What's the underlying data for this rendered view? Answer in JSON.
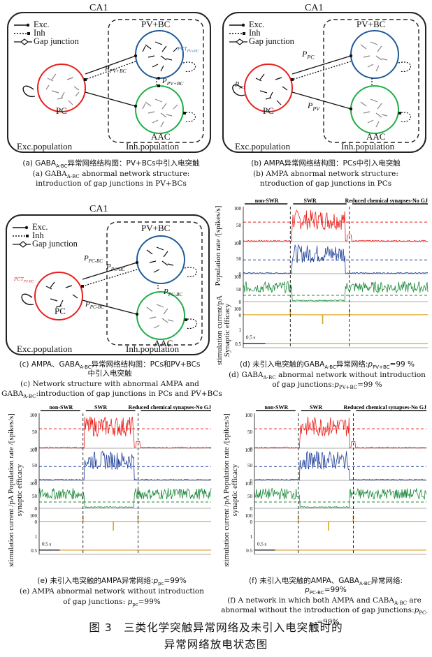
{
  "panels": {
    "a": {
      "title": "CA1",
      "legend": [
        "Exc.",
        "Inh",
        "Gap junction"
      ],
      "nodes": {
        "pv": "PV+BC",
        "pc": "PC",
        "aac": "AAC"
      },
      "probs": {
        "p_pc_pv": "P",
        "p_pc_pv_sub": "PV+BC",
        "p_pv_aac": "P",
        "p_pv_aac_sub": "PV+BC"
      },
      "pct_label": "PCT",
      "pct_sub": "PV+BC",
      "groups": {
        "exc": "Exc.population",
        "inh": "Inh.population"
      },
      "caption_zh": "(a) GABA",
      "caption_zh_sub": "A-BC",
      "caption_zh_rest": "异常网络结构图：PV+BCs中引入电突触",
      "caption_en_1": "(a) GABA",
      "caption_en_1_sub": "A-BC",
      "caption_en_1_rest": " abnormal network structure:",
      "caption_en_2": "introduction of gap junctions in PV+BCs"
    },
    "b": {
      "title": "CA1",
      "legend": [
        "Exc.",
        "Inh",
        "Gap junction"
      ],
      "nodes": {
        "pv": "PV+BC",
        "pc": "PC",
        "aac": "AAC"
      },
      "probs": {
        "p_pc": "P",
        "p_pc_sub": "PC",
        "p_pv": "P",
        "p_pv_sub": "PV"
      },
      "pct_label": "P",
      "pct_sub": "PC",
      "groups": {
        "exc": "Exc.population",
        "inh": "Inh.population"
      },
      "caption_zh": "(b) AMPA异常网络结构图：PCs中引入电突触",
      "caption_en_1": "(b) AMPA abnormal network structure:",
      "caption_en_2": "ntroduction of gap junctions in PCs"
    },
    "c": {
      "title": "CA1",
      "legend": [
        "Exc.",
        "Inh",
        "Gap junction"
      ],
      "nodes": {
        "pv": "PV+BC",
        "pc": "PC",
        "aac": "AAC"
      },
      "probs": {
        "p1": "P",
        "p1_sub": "PC-BC",
        "p2": "P",
        "p2_sub": "PC-BC",
        "p3": "P",
        "p3_sub": "PC-BC",
        "p4": "P",
        "p4_sub": "PC-BC"
      },
      "pct_label": "PCT",
      "pct_sub": "PC-BC",
      "groups": {
        "exc": "Exc.population",
        "inh": "Inh.population"
      },
      "caption_zh_1": "(c) AMPA、GABA",
      "caption_zh_1_sub": "A-BC",
      "caption_zh_1_rest": "异常网络结构图：PCs和PV+BCs",
      "caption_zh_2": "中引入电突触",
      "caption_en_1": "(c) Network structure with abnormal AMPA and",
      "caption_en_2": "GABA",
      "caption_en_2_sub": "A-BC",
      "caption_en_2_rest": ":introduction of gap junctions in PCs and PV+BCs"
    },
    "d": {
      "phases": [
        "non-SWR",
        "SWR",
        "Reduced chemical synapses-No GJ"
      ],
      "ylabel_top": "Population rate /[spikes/s]",
      "ylabel_bottom": "stimulation current/pA",
      "ylabel_eff": "Synaptic efficacy",
      "scale": "0.5 s",
      "caption_zh": "(d) 未引入电突触的GABA",
      "caption_zh_sub": "A-BC",
      "caption_zh_rest": "异常网络:",
      "caption_zh_p": "p",
      "caption_zh_p_sub": "PV+BC",
      "caption_zh_val": "=99 %",
      "caption_en_1": "(d) GABA",
      "caption_en_1_sub": "A-BC",
      "caption_en_1_rest": " abnormal network without introduction",
      "caption_en_2": "of gap junctions:",
      "caption_en_2_p": "p",
      "caption_en_2_sub": "PV+BC",
      "caption_en_2_val": "=99 %"
    },
    "e": {
      "phases": [
        "non-SWR",
        "SWR",
        "Reduced chemical synapses-No GJ"
      ],
      "ylabel_top": "Population rate /[spikes/s]",
      "ylabel_bottom": "stimulation current /pA",
      "ylabel_eff": "synaptic efficacy",
      "scale": "0.5 s",
      "caption_zh": "(e) 未引入电突触的AMPA异常网络:",
      "caption_zh_p": "p",
      "caption_zh_p_sub": "pc",
      "caption_zh_val": "=99%",
      "caption_en_1": "(e) AMPA abnormal network without introduction",
      "caption_en_2": "of gap junctions: ",
      "caption_en_2_p": "p",
      "caption_en_2_sub": "pc",
      "caption_en_2_val": "=99%"
    },
    "f": {
      "phases": [
        "non-SWR",
        "SWR",
        "Reduced chemical synapses-No GJ"
      ],
      "ylabel_top": "Population rate /[spikes/s]",
      "ylabel_bottom": "stimulation current /pA",
      "ylabel_eff": "synaptic efficacy",
      "scale": "0.5 s",
      "caption_zh": "(f) 未引入电突触的AMPA、GABA",
      "caption_zh_sub": "A-BC",
      "caption_zh_rest": "异常网络:",
      "caption_zh_2": "p",
      "caption_zh_2_sub": "PC-BC",
      "caption_zh_2_val": "=99%",
      "caption_en_1": "(f) A network in which both AMPA and CABA",
      "caption_en_1_sub": "A-BC",
      "caption_en_1_rest": " are",
      "caption_en_2": "abnormal without the introduction of gap junctions:",
      "caption_en_2_p": "p",
      "caption_en_2_sub": "PC-BC",
      "caption_en_2_val": "=99%"
    }
  },
  "figure_title_1": "图 3　三类化学突触异常网络及未引入电突触时的",
  "figure_title_2": "异常网络放电状态图",
  "chart_data": {
    "type": "line",
    "panels": [
      "d",
      "e",
      "f"
    ],
    "ticks_top": [
      0,
      50,
      100
    ],
    "ticks_bottom": [
      0,
      100
    ],
    "ticks_eff": [
      0.5,
      1.0
    ],
    "phases": [
      "non-SWR",
      "SWR",
      "Reduced chemical synapses-No GJ"
    ],
    "series": [
      {
        "name": "PC",
        "color": "#d62728"
      },
      {
        "name": "PV+BC",
        "color": "#1f3f99"
      },
      {
        "name": "AAC",
        "color": "#1a8a3a"
      }
    ],
    "colors": {
      "red": "#e8201c",
      "blue": "#1f3f99",
      "green": "#1a8a3a",
      "orange": "#d9a521"
    }
  }
}
